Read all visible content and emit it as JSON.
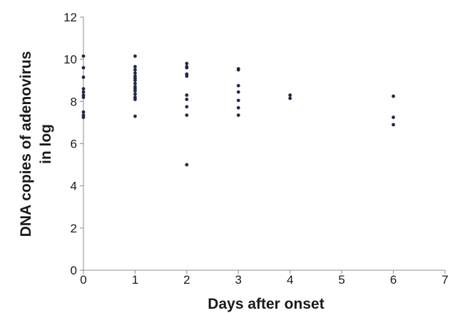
{
  "chart_data": {
    "type": "scatter",
    "title": "",
    "xlabel": "Days after onset",
    "ylabel_lines": [
      "DNA copies of adenovirus",
      "in log"
    ],
    "xlim": [
      0,
      7
    ],
    "ylim": [
      0,
      12
    ],
    "x_ticks": [
      "0",
      "1",
      "2",
      "3",
      "4",
      "5",
      "6",
      "7"
    ],
    "y_ticks": [
      "0",
      "2",
      "4",
      "6",
      "8",
      "10",
      "12"
    ],
    "grid": false,
    "legend": "none",
    "point_color": "#1f2a44",
    "series": [
      {
        "points": [
          [
            0,
            10.15
          ],
          [
            0,
            9.6
          ],
          [
            0,
            9.15
          ],
          [
            0,
            8.6
          ],
          [
            0,
            8.45
          ],
          [
            0,
            8.3
          ],
          [
            0,
            8.2
          ],
          [
            0,
            7.5
          ],
          [
            0,
            7.35
          ],
          [
            0,
            7.25
          ],
          [
            1,
            10.15
          ],
          [
            1,
            9.65
          ],
          [
            1,
            9.5
          ],
          [
            1,
            9.35
          ],
          [
            1,
            9.2
          ],
          [
            1,
            9.1
          ],
          [
            1,
            9.0
          ],
          [
            1,
            8.85
          ],
          [
            1,
            8.7
          ],
          [
            1,
            8.6
          ],
          [
            1,
            8.5
          ],
          [
            1,
            8.35
          ],
          [
            1,
            8.2
          ],
          [
            1,
            8.1
          ],
          [
            1,
            7.3
          ],
          [
            2,
            9.8
          ],
          [
            2,
            9.65
          ],
          [
            2,
            9.6
          ],
          [
            2,
            9.3
          ],
          [
            2,
            9.2
          ],
          [
            2,
            8.3
          ],
          [
            2,
            8.1
          ],
          [
            2,
            7.75
          ],
          [
            2,
            7.35
          ],
          [
            2,
            5.0
          ],
          [
            3,
            9.55
          ],
          [
            3,
            9.5
          ],
          [
            3,
            8.75
          ],
          [
            3,
            8.45
          ],
          [
            3,
            8.05
          ],
          [
            3,
            7.7
          ],
          [
            3,
            7.35
          ],
          [
            4,
            8.3
          ],
          [
            4,
            8.15
          ],
          [
            6,
            8.25
          ],
          [
            6,
            7.25
          ],
          [
            6,
            6.9
          ]
        ]
      }
    ]
  }
}
